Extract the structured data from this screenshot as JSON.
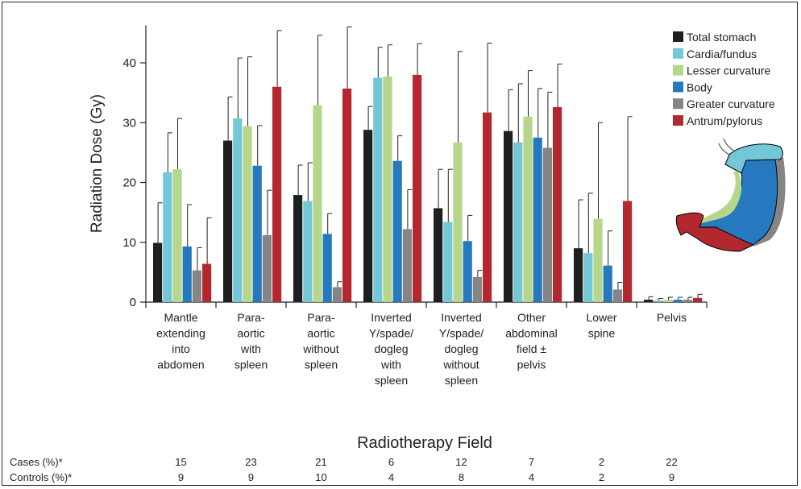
{
  "chart_data": {
    "type": "bar",
    "xlabel": "Radiotherapy Field",
    "ylabel": "Radiation Dose (Gy)",
    "ylim": [
      0,
      46
    ],
    "yticks": [
      0,
      10,
      20,
      30,
      40
    ],
    "grid": false,
    "legend_position": "top-right",
    "categories": [
      [
        "Mantle",
        "extending",
        "into",
        "abdomen"
      ],
      [
        "Para-",
        "aortic",
        "with",
        "spleen"
      ],
      [
        "Para-",
        "aortic",
        "without",
        "spleen"
      ],
      [
        "Inverted",
        "Y/spade/",
        "dogleg",
        "with",
        "spleen"
      ],
      [
        "Inverted",
        "Y/spade/",
        "dogleg",
        "without",
        "spleen"
      ],
      [
        "Other",
        "abdominal",
        "field ±",
        "pelvis"
      ],
      [
        "Lower",
        "spine"
      ],
      [
        "Pelvis"
      ]
    ],
    "series": [
      {
        "name": "Total stomach",
        "color": "#1f1f1f",
        "values": [
          9.9,
          27.0,
          17.9,
          28.8,
          15.7,
          28.6,
          9.0,
          0.4
        ],
        "error_upper": [
          16.6,
          34.3,
          22.9,
          32.7,
          22.2,
          35.5,
          17.1,
          0.9
        ]
      },
      {
        "name": "Cardia/fundus",
        "color": "#74c7d6",
        "values": [
          21.7,
          30.7,
          16.9,
          37.5,
          13.4,
          26.7,
          8.2,
          0.3
        ],
        "error_upper": [
          28.3,
          40.8,
          23.3,
          42.6,
          22.2,
          36.5,
          18.2,
          0.6
        ]
      },
      {
        "name": "Lesser curvature",
        "color": "#b5d68b",
        "values": [
          22.2,
          29.4,
          32.9,
          37.7,
          26.7,
          31.0,
          13.9,
          0.4
        ],
        "error_upper": [
          30.7,
          41.0,
          44.6,
          43.0,
          41.9,
          38.7,
          30.0,
          0.8
        ]
      },
      {
        "name": "Body",
        "color": "#2679be",
        "values": [
          9.3,
          22.8,
          11.4,
          23.6,
          10.2,
          27.5,
          6.1,
          0.4
        ],
        "error_upper": [
          16.3,
          29.5,
          14.8,
          27.8,
          14.5,
          35.7,
          11.9,
          0.8
        ]
      },
      {
        "name": "Greater curvature",
        "color": "#858585",
        "values": [
          5.3,
          11.2,
          2.5,
          12.2,
          4.2,
          25.8,
          2.1,
          0.4
        ],
        "error_upper": [
          9.1,
          18.7,
          3.4,
          18.8,
          5.3,
          35.1,
          3.3,
          0.8
        ]
      },
      {
        "name": "Antrum/pylorus",
        "color": "#b3282e",
        "values": [
          6.4,
          36.0,
          35.7,
          38.0,
          31.7,
          32.6,
          16.9,
          0.7
        ],
        "error_upper": [
          14.1,
          45.4,
          46.0,
          43.2,
          43.3,
          39.8,
          31.0,
          1.3
        ]
      }
    ]
  },
  "table": {
    "cases_label": "Cases (%)*",
    "controls_label": "Controls (%)*",
    "cases": [
      "15",
      "23",
      "21",
      "6",
      "12",
      "7",
      "2",
      "22"
    ],
    "controls": [
      "9",
      "9",
      "10",
      "4",
      "8",
      "4",
      "2",
      "9"
    ]
  },
  "stomach_diagram": {
    "regions": [
      "Cardia/fundus",
      "Lesser curvature",
      "Body",
      "Greater curvature",
      "Antrum/pylorus"
    ]
  }
}
